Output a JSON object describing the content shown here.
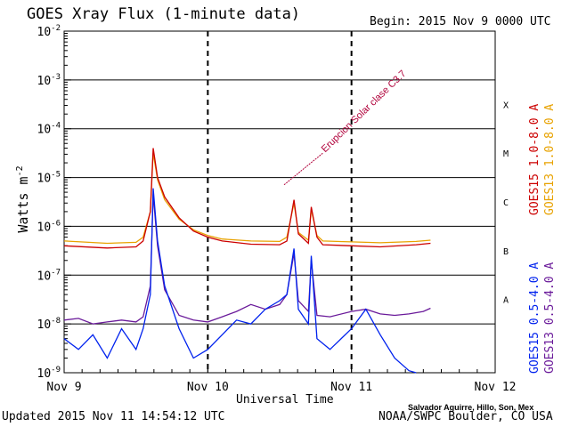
{
  "chart_data": {
    "type": "line",
    "title": "GOES Xray Flux (1-minute data)",
    "begin_label": "Begin:  2015 Nov 9 0000 UTC",
    "xlabel": "Universal Time",
    "ylabel": "Watts m",
    "ylabel_sup": "-2",
    "x_ticks": [
      "Nov 9",
      "Nov 10",
      "Nov 11",
      "Nov 12"
    ],
    "x_range_days": [
      0,
      3
    ],
    "y_scale": "log",
    "y_range": [
      1e-09,
      0.01
    ],
    "y_ticks": [
      {
        "base": "10",
        "exp": "-9"
      },
      {
        "base": "10",
        "exp": "-8"
      },
      {
        "base": "10",
        "exp": "-7"
      },
      {
        "base": "10",
        "exp": "-6"
      },
      {
        "base": "10",
        "exp": "-5"
      },
      {
        "base": "10",
        "exp": "-4"
      },
      {
        "base": "10",
        "exp": "-3"
      },
      {
        "base": "10",
        "exp": "-2"
      }
    ],
    "flare_classes": [
      "A",
      "B",
      "C",
      "M",
      "X"
    ],
    "annotation": "Erupcion Solar clase C3.7",
    "grid": true,
    "series": [
      {
        "name": "GOES15 1.0-8.0 A",
        "color": "#cc0000",
        "points": [
          [
            0.0,
            4e-07
          ],
          [
            0.3,
            3.6e-07
          ],
          [
            0.5,
            3.8e-07
          ],
          [
            0.55,
            5e-07
          ],
          [
            0.6,
            2e-06
          ],
          [
            0.62,
            4e-05
          ],
          [
            0.65,
            1e-05
          ],
          [
            0.7,
            4e-06
          ],
          [
            0.8,
            1.5e-06
          ],
          [
            0.9,
            8e-07
          ],
          [
            1.0,
            6e-07
          ],
          [
            1.1,
            5e-07
          ],
          [
            1.3,
            4.3e-07
          ],
          [
            1.5,
            4.2e-07
          ],
          [
            1.55,
            5e-07
          ],
          [
            1.6,
            3.5e-06
          ],
          [
            1.63,
            7e-07
          ],
          [
            1.7,
            4.5e-07
          ],
          [
            1.72,
            2.5e-06
          ],
          [
            1.76,
            6e-07
          ],
          [
            1.8,
            4.2e-07
          ],
          [
            2.0,
            4e-07
          ],
          [
            2.2,
            3.8e-07
          ],
          [
            2.45,
            4.2e-07
          ],
          [
            2.55,
            4.5e-07
          ]
        ]
      },
      {
        "name": "GOES13 1.0-8.0 A",
        "color": "#e8a200",
        "points": [
          [
            0.0,
            5e-07
          ],
          [
            0.3,
            4.5e-07
          ],
          [
            0.5,
            4.7e-07
          ],
          [
            0.55,
            6e-07
          ],
          [
            0.6,
            2e-06
          ],
          [
            0.62,
            3.2e-05
          ],
          [
            0.65,
            9e-06
          ],
          [
            0.7,
            3.5e-06
          ],
          [
            0.8,
            1.4e-06
          ],
          [
            0.9,
            8.5e-07
          ],
          [
            1.0,
            6.5e-07
          ],
          [
            1.1,
            5.5e-07
          ],
          [
            1.3,
            5e-07
          ],
          [
            1.5,
            4.9e-07
          ],
          [
            1.55,
            6e-07
          ],
          [
            1.6,
            3e-06
          ],
          [
            1.63,
            7.5e-07
          ],
          [
            1.7,
            5.2e-07
          ],
          [
            1.72,
            2.2e-06
          ],
          [
            1.76,
            6.5e-07
          ],
          [
            1.8,
            5e-07
          ],
          [
            2.0,
            4.8e-07
          ],
          [
            2.2,
            4.6e-07
          ],
          [
            2.45,
            4.9e-07
          ],
          [
            2.55,
            5.2e-07
          ]
        ]
      },
      {
        "name": "GOES15 0.5-4.0 A",
        "color": "#0022ee",
        "points": [
          [
            0.0,
            5e-09
          ],
          [
            0.1,
            3e-09
          ],
          [
            0.2,
            6e-09
          ],
          [
            0.3,
            2e-09
          ],
          [
            0.4,
            8e-09
          ],
          [
            0.5,
            3e-09
          ],
          [
            0.55,
            8e-09
          ],
          [
            0.6,
            4e-08
          ],
          [
            0.62,
            6e-06
          ],
          [
            0.65,
            5e-07
          ],
          [
            0.7,
            6e-08
          ],
          [
            0.8,
            8e-09
          ],
          [
            0.9,
            2e-09
          ],
          [
            1.0,
            3e-09
          ],
          [
            1.1,
            6e-09
          ],
          [
            1.2,
            1.2e-08
          ],
          [
            1.3,
            1e-08
          ],
          [
            1.4,
            2e-08
          ],
          [
            1.5,
            3e-08
          ],
          [
            1.55,
            4e-08
          ],
          [
            1.6,
            3.5e-07
          ],
          [
            1.63,
            2e-08
          ],
          [
            1.7,
            1e-08
          ],
          [
            1.72,
            2.5e-07
          ],
          [
            1.76,
            5e-09
          ],
          [
            1.85,
            3e-09
          ],
          [
            2.0,
            8e-09
          ],
          [
            2.1,
            2e-08
          ],
          [
            2.2,
            6e-09
          ],
          [
            2.3,
            2e-09
          ],
          [
            2.4,
            1.1e-09
          ],
          [
            2.45,
            1e-09
          ]
        ]
      },
      {
        "name": "GOES13 0.5-4.0 A",
        "color": "#6a1a9a",
        "points": [
          [
            0.0,
            1.2e-08
          ],
          [
            0.1,
            1.3e-08
          ],
          [
            0.2,
            1e-08
          ],
          [
            0.3,
            1.1e-08
          ],
          [
            0.4,
            1.2e-08
          ],
          [
            0.5,
            1.1e-08
          ],
          [
            0.55,
            1.4e-08
          ],
          [
            0.6,
            6e-08
          ],
          [
            0.62,
            4.5e-06
          ],
          [
            0.65,
            4e-07
          ],
          [
            0.7,
            5e-08
          ],
          [
            0.8,
            1.5e-08
          ],
          [
            0.9,
            1.2e-08
          ],
          [
            1.0,
            1.1e-08
          ],
          [
            1.1,
            1.4e-08
          ],
          [
            1.2,
            1.8e-08
          ],
          [
            1.3,
            2.5e-08
          ],
          [
            1.4,
            2e-08
          ],
          [
            1.5,
            2.5e-08
          ],
          [
            1.55,
            4e-08
          ],
          [
            1.6,
            2.8e-07
          ],
          [
            1.63,
            3e-08
          ],
          [
            1.7,
            1.8e-08
          ],
          [
            1.72,
            2e-07
          ],
          [
            1.76,
            1.5e-08
          ],
          [
            1.85,
            1.4e-08
          ],
          [
            2.0,
            1.8e-08
          ],
          [
            2.1,
            2e-08
          ],
          [
            2.2,
            1.6e-08
          ],
          [
            2.3,
            1.5e-08
          ],
          [
            2.4,
            1.6e-08
          ],
          [
            2.5,
            1.8e-08
          ],
          [
            2.55,
            2.1e-08
          ]
        ]
      }
    ]
  },
  "footer": {
    "updated": "Updated 2015 Nov 11 14:54:12 UTC",
    "credit": "Salvador Aguirre, Hillo, Son, Mex",
    "source": "NOAA/SWPC Boulder, CO USA"
  }
}
